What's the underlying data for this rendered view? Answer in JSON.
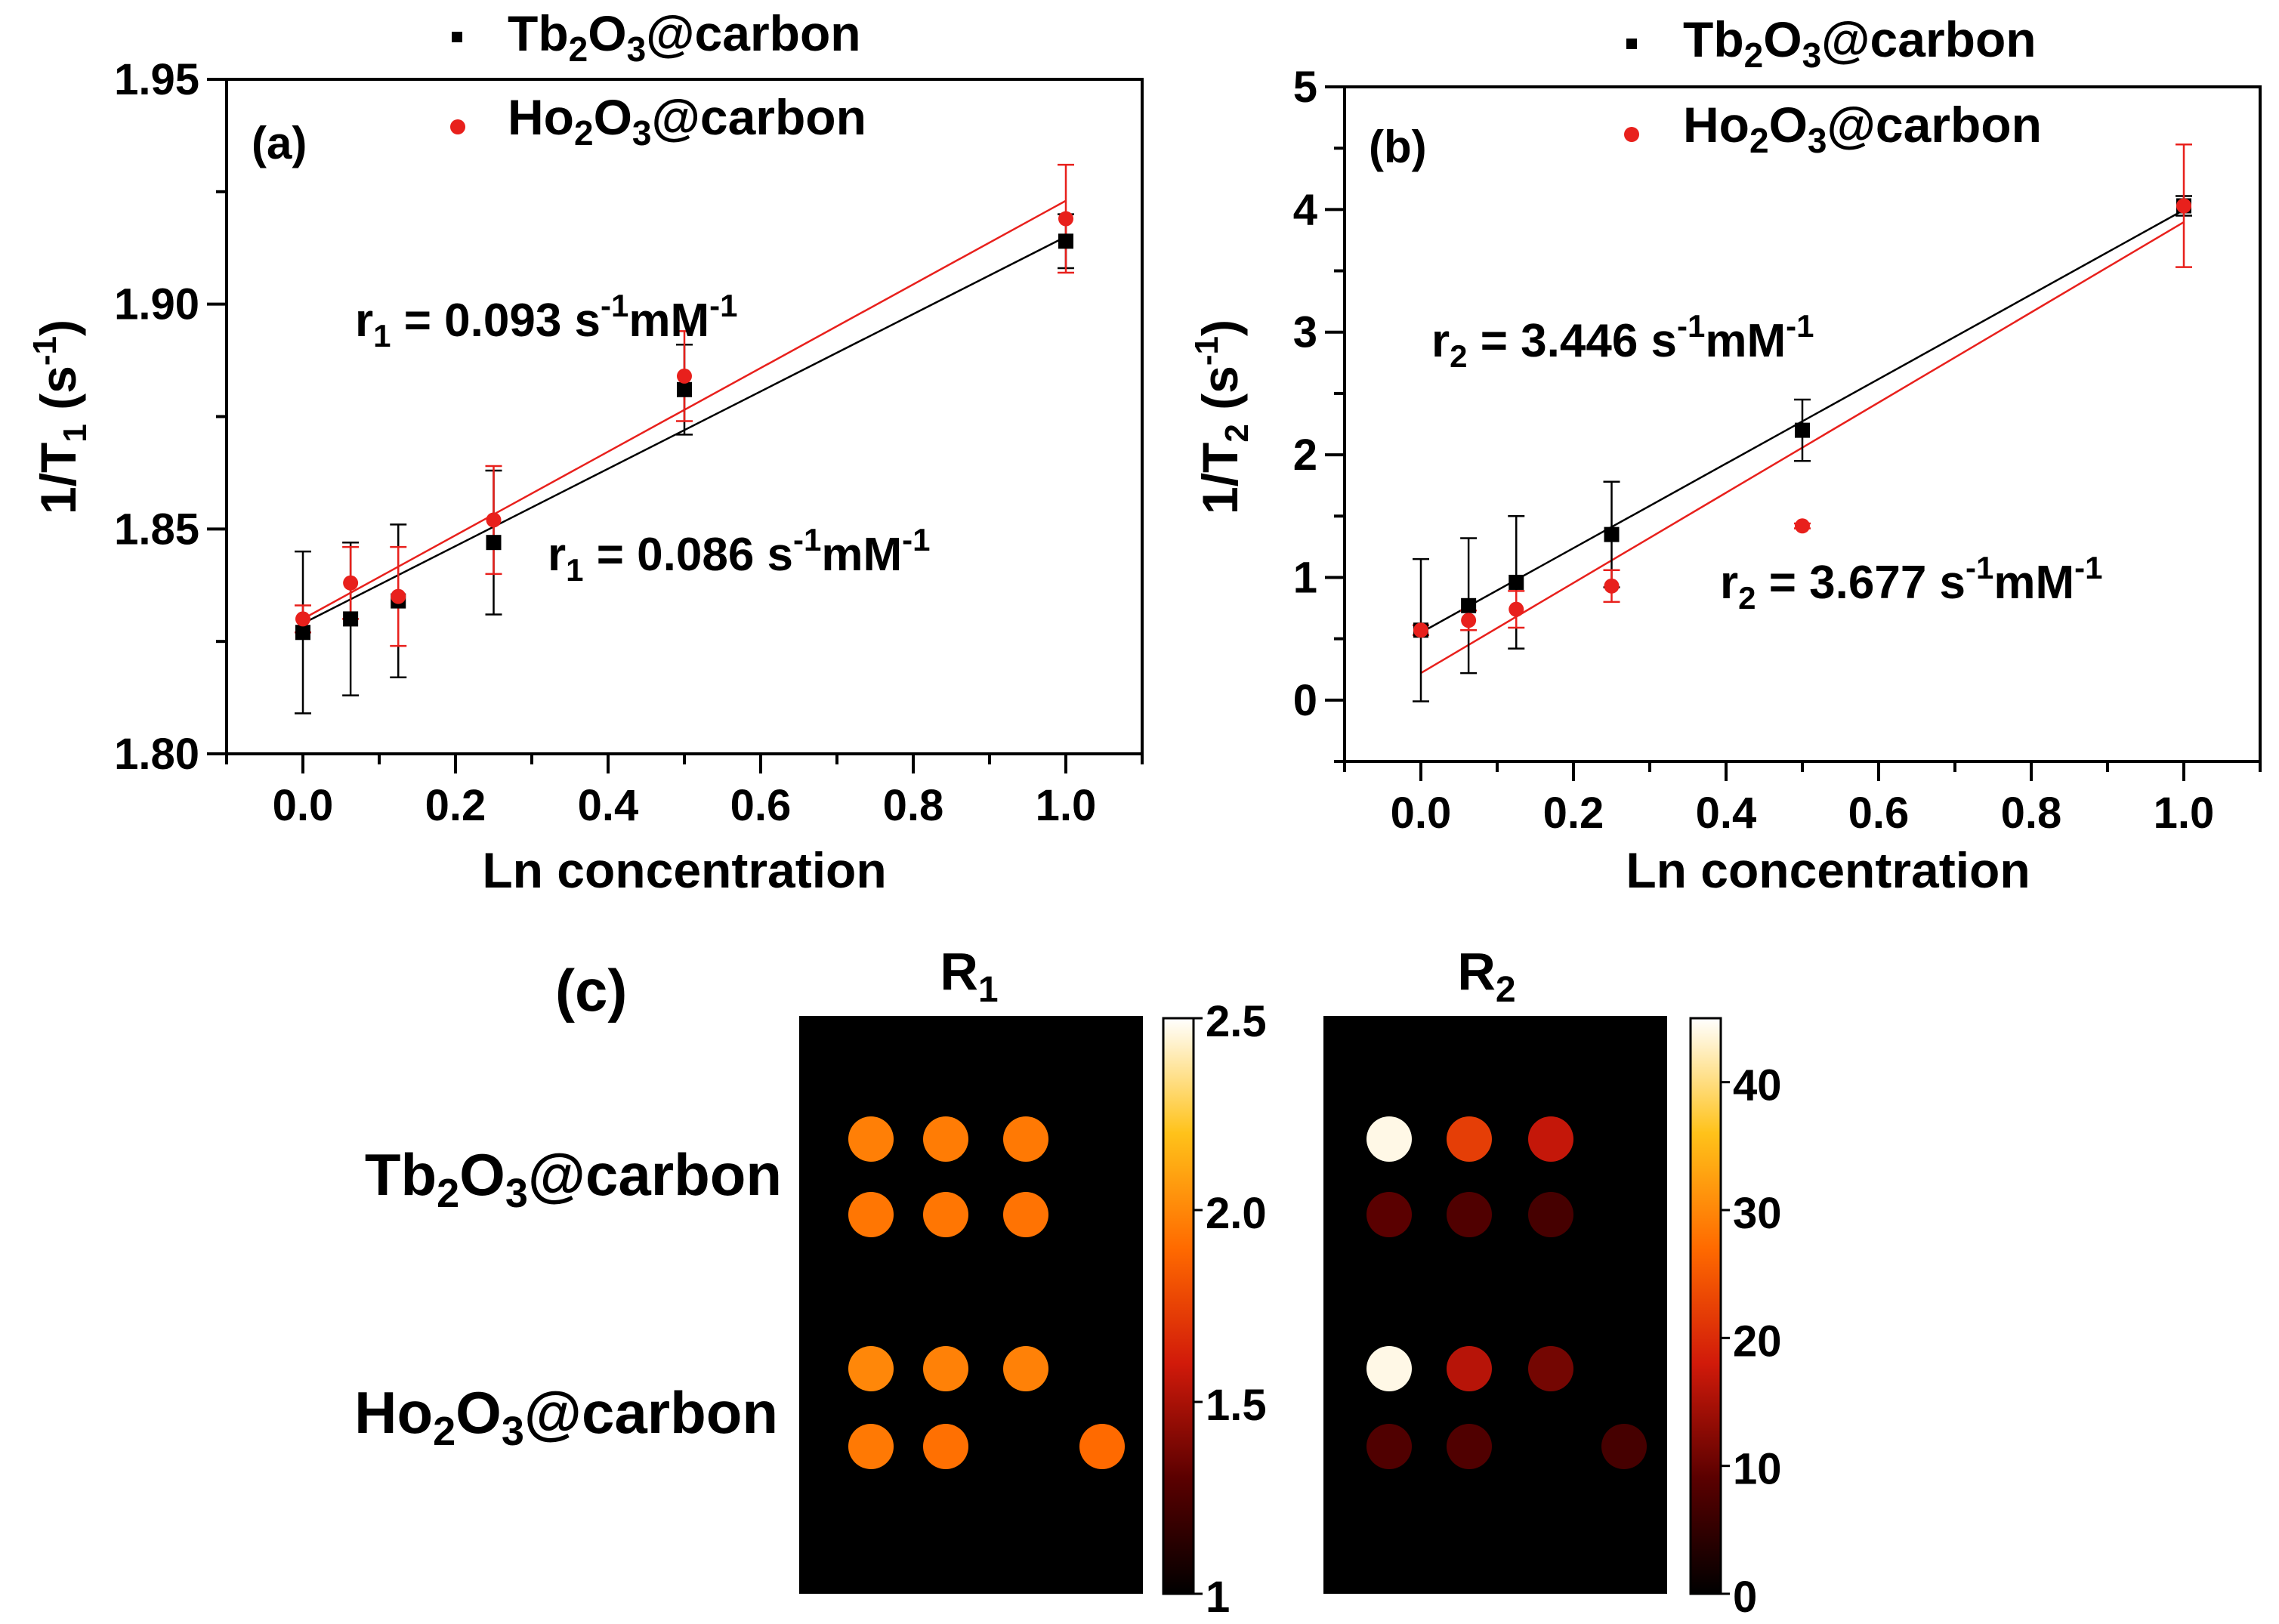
{
  "chart_data": [
    {
      "type": "scatter",
      "panel_label": "(a)",
      "xlabel": "Ln concentration",
      "ylabel": {
        "main": "1/T",
        "sub": "1",
        "unit_open": " (s",
        "unit_sup": "-1",
        "unit_close": ")"
      },
      "xlim": [
        -0.1,
        1.1
      ],
      "ylim": [
        1.8,
        1.95
      ],
      "x_ticks": [
        "0.0",
        "0.2",
        "0.4",
        "0.6",
        "0.8",
        "1.0"
      ],
      "y_ticks": [
        "1.80",
        "1.85",
        "1.90",
        "1.95"
      ],
      "legend": [
        {
          "marker": "square",
          "color": "#000000",
          "base": "Tb",
          "s1": "2",
          "mid": "O",
          "s2": "3",
          "suffix": "@carbon"
        },
        {
          "marker": "circle",
          "color": "#e8201c",
          "base": "Ho",
          "s1": "2",
          "mid": "O",
          "s2": "3",
          "suffix": "@carbon"
        }
      ],
      "series": [
        {
          "name": "Tb2O3@carbon",
          "color": "#000000",
          "marker": "square",
          "x": [
            0,
            0.0625,
            0.125,
            0.25,
            0.5,
            1.0
          ],
          "y": [
            1.827,
            1.83,
            1.834,
            1.847,
            1.881,
            1.914
          ],
          "err": [
            0.018,
            0.017,
            0.017,
            0.016,
            0.01,
            0.006
          ],
          "fit": {
            "slope": 0.086,
            "intercept": 1.829
          }
        },
        {
          "name": "Ho2O3@carbon",
          "color": "#e8201c",
          "marker": "circle",
          "x": [
            0,
            0.0625,
            0.125,
            0.25,
            0.5,
            1.0
          ],
          "y": [
            1.83,
            1.838,
            1.835,
            1.852,
            1.884,
            1.919
          ],
          "err": [
            0.003,
            0.008,
            0.011,
            0.012,
            0.01,
            0.012
          ],
          "fit": {
            "slope": 0.093,
            "intercept": 1.83
          }
        }
      ],
      "annotations": [
        {
          "color": "#000000",
          "pre": "r",
          "sub": "1",
          "text": " = 0.093 s",
          "sup1": "-1",
          "mid": "mM",
          "sup2": "-1"
        },
        {
          "color": "#000000",
          "pre": "r",
          "sub": "1",
          "text": " = 0.086 s",
          "sup1": "-1",
          "mid": "mM",
          "sup2": "-1"
        }
      ]
    },
    {
      "type": "scatter",
      "panel_label": "(b)",
      "xlabel": "Ln concentration",
      "ylabel": {
        "main": "1/T",
        "sub": "2",
        "unit_open": " (s",
        "unit_sup": "-1",
        "unit_close": ")"
      },
      "xlim": [
        -0.1,
        1.1
      ],
      "ylim": [
        -0.5,
        5.0
      ],
      "x_ticks": [
        "0.0",
        "0.2",
        "0.4",
        "0.6",
        "0.8",
        "1.0"
      ],
      "y_ticks": [
        "0",
        "1",
        "2",
        "3",
        "4",
        "5"
      ],
      "legend": [
        {
          "marker": "square",
          "color": "#000000",
          "base": "Tb",
          "s1": "2",
          "mid": "O",
          "s2": "3",
          "suffix": "@carbon"
        },
        {
          "marker": "circle",
          "color": "#e8201c",
          "base": "Ho",
          "s1": "2",
          "mid": "O",
          "s2": "3",
          "suffix": "@carbon"
        }
      ],
      "series": [
        {
          "name": "Tb2O3@carbon",
          "color": "#000000",
          "marker": "square",
          "x": [
            0,
            0.0625,
            0.125,
            0.25,
            0.5,
            1.0
          ],
          "y": [
            0.57,
            0.77,
            0.96,
            1.35,
            2.2,
            4.03
          ],
          "err": [
            0.58,
            0.55,
            0.54,
            0.43,
            0.25,
            0.08
          ],
          "fit": {
            "slope": 3.446,
            "intercept": 0.55
          }
        },
        {
          "name": "Ho2O3@carbon",
          "color": "#e8201c",
          "marker": "circle",
          "x": [
            0,
            0.0625,
            0.125,
            0.25,
            0.5,
            1.0
          ],
          "y": [
            0.57,
            0.65,
            0.74,
            0.93,
            1.42,
            4.03
          ],
          "err": [
            0.04,
            0.08,
            0.15,
            0.13,
            0.02,
            0.5
          ],
          "fit": {
            "slope": 3.677,
            "intercept": 0.22
          }
        }
      ],
      "annotations": [
        {
          "color": "#000000",
          "pre": "r",
          "sub": "2",
          "text": " = 3.446 s",
          "sup1": "-1",
          "mid": "mM",
          "sup2": "-1"
        },
        {
          "color": "#000000",
          "pre": "r",
          "sub": "2",
          "text": " = 3.677 s",
          "sup1": "-1",
          "mid": "mM",
          "sup2": "-1"
        }
      ]
    },
    {
      "type": "heatmap",
      "panel_label": "(c)",
      "row_labels": [
        {
          "base": "Tb",
          "s1": "2",
          "mid": "O",
          "s2": "3",
          "suffix": "@carbon"
        },
        {
          "base": "Ho",
          "s1": "2",
          "mid": "O",
          "s2": "3",
          "suffix": "@carbon"
        }
      ],
      "maps": [
        {
          "title": "R",
          "title_sub": "1",
          "colorbar": {
            "min": 1,
            "max": 2.5,
            "ticks": [
              "2.5",
              "2.0",
              "1.5",
              "1"
            ],
            "tick_values": [
              2.5,
              2.0,
              1.5,
              1.0
            ]
          },
          "wells": [
            [
              1.97,
              1.96,
              1.95,
              null
            ],
            [
              1.94,
              1.94,
              1.93,
              null
            ],
            [
              2.0,
              1.98,
              1.98,
              null
            ],
            [
              1.95,
              1.92,
              null,
              1.9
            ]
          ]
        },
        {
          "title": "R",
          "title_sub": "2",
          "colorbar": {
            "min": 0,
            "max": 45,
            "ticks": [
              "40",
              "30",
              "20",
              "10",
              "0"
            ],
            "tick_values": [
              40,
              30,
              20,
              10,
              0
            ]
          },
          "wells": [
            [
              44,
              22,
              17,
              null
            ],
            [
              9,
              8,
              7,
              null
            ],
            [
              44,
              16,
              11,
              null
            ],
            [
              8,
              8,
              null,
              7
            ]
          ]
        }
      ]
    }
  ]
}
